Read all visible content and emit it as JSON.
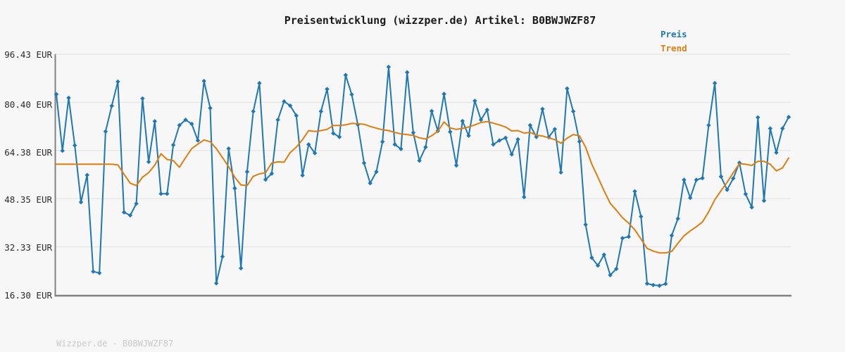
{
  "title": "Preisentwicklung (wizzper.de) Artikel: B0BWJWZF87",
  "legend": {
    "price_label": "Preis",
    "trend_label": "Trend"
  },
  "y_axis": {
    "tick_labels": [
      "96.43 EUR",
      "80.40 EUR",
      "64.38 EUR",
      "48.35 EUR",
      "32.33 EUR",
      "16.30 EUR"
    ],
    "tick_values": [
      96.43,
      80.4,
      64.38,
      48.35,
      32.33,
      16.3
    ]
  },
  "footer": "Wizzper.de - B0BWJWZF87",
  "colors": {
    "price": "#1f77b4",
    "trend": "#dd7e0e",
    "axis": "#808080",
    "grid": "#e6e6e6",
    "background": "#f7f7f7",
    "title_text": "#1a1a1a",
    "tick_text": "#2b2b2b",
    "footer_text": "#c9c9c9"
  },
  "chart_data": {
    "type": "line",
    "title": "Preisentwicklung (wizzper.de) Artikel: B0BWJWZF87",
    "xlabel": "",
    "ylabel": "EUR",
    "x_unit": "observation index (dates not shown)",
    "ylim": [
      16.3,
      96.43
    ],
    "y_ticks": [
      96.43,
      80.4,
      64.38,
      48.35,
      32.33,
      16.3
    ],
    "grid": true,
    "legend_position": "top-right",
    "series": [
      {
        "name": "Preis",
        "color": "#1f77b4",
        "marker": "diamond",
        "values": [
          83.1,
          64.3,
          81.9,
          66.1,
          47.2,
          56.2,
          24.1,
          23.6,
          70.7,
          79.2,
          87.3,
          43.8,
          42.8,
          46.7,
          81.7,
          60.6,
          74.1,
          50.0,
          50.0,
          66.2,
          72.8,
          74.6,
          73.2,
          67.7,
          87.5,
          78.5,
          20.2,
          29.1,
          65.0,
          51.8,
          25.2,
          57.3,
          77.4,
          86.8,
          54.7,
          56.7,
          74.6,
          80.7,
          79.3,
          76.0,
          56.1,
          66.4,
          63.5,
          77.4,
          84.8,
          70.1,
          68.9,
          89.5,
          83.0,
          73.0,
          60.2,
          53.5,
          57.3,
          67.3,
          92.2,
          66.4,
          64.9,
          90.4,
          70.3,
          61.0,
          65.5,
          77.5,
          70.9,
          83.2,
          70.6,
          59.4,
          74.2,
          69.3,
          80.9,
          74.6,
          77.9,
          66.4,
          67.7,
          68.6,
          63.1,
          68.1,
          48.9,
          72.8,
          68.9,
          78.2,
          68.8,
          71.5,
          57.1,
          85.0,
          77.4,
          67.4,
          39.7,
          28.7,
          26.1,
          29.7,
          22.9,
          25.0,
          35.2,
          35.7,
          50.8,
          42.4,
          20.1,
          19.6,
          19.4,
          20.0,
          36.1,
          41.7,
          54.6,
          48.6,
          54.6,
          55.2,
          72.8,
          86.8,
          55.7,
          51.3,
          55.1,
          60.3,
          49.9,
          45.5,
          75.4,
          47.7,
          71.7,
          63.7,
          71.7,
          75.5
        ]
      },
      {
        "name": "Trend",
        "color": "#dd7e0e",
        "marker": "none",
        "values": [
          59.8,
          59.8,
          59.8,
          59.8,
          59.8,
          59.8,
          59.8,
          59.8,
          59.8,
          59.8,
          59.6,
          56.5,
          53.5,
          52.7,
          55.5,
          57.0,
          59.5,
          63.3,
          61.4,
          61.0,
          58.8,
          62.0,
          65.0,
          66.5,
          67.9,
          67.3,
          65.0,
          62.0,
          59.0,
          55.5,
          52.9,
          52.7,
          55.8,
          56.6,
          57.0,
          60.2,
          60.6,
          60.5,
          63.7,
          65.5,
          68.0,
          71.0,
          70.7,
          71.0,
          71.4,
          72.7,
          72.7,
          72.9,
          73.4,
          73.3,
          73.1,
          72.4,
          71.8,
          71.3,
          71.0,
          70.4,
          69.9,
          69.7,
          69.4,
          68.6,
          68.2,
          69.3,
          70.8,
          73.9,
          71.9,
          71.4,
          71.7,
          72.2,
          72.9,
          73.7,
          74.0,
          73.5,
          72.9,
          72.2,
          70.9,
          71.0,
          70.2,
          70.4,
          69.5,
          69.2,
          68.6,
          68.0,
          66.8,
          68.5,
          69.7,
          69.3,
          65.5,
          59.9,
          55.5,
          51.0,
          46.8,
          44.5,
          42.0,
          40.2,
          38.0,
          34.9,
          31.8,
          30.9,
          30.3,
          30.3,
          30.8,
          33.5,
          36.0,
          37.6,
          39.0,
          40.6,
          44.0,
          48.0,
          51.0,
          53.8,
          57.0,
          60.0,
          59.8,
          59.4,
          60.8,
          60.8,
          59.8,
          57.6,
          58.6,
          61.9
        ]
      }
    ]
  }
}
